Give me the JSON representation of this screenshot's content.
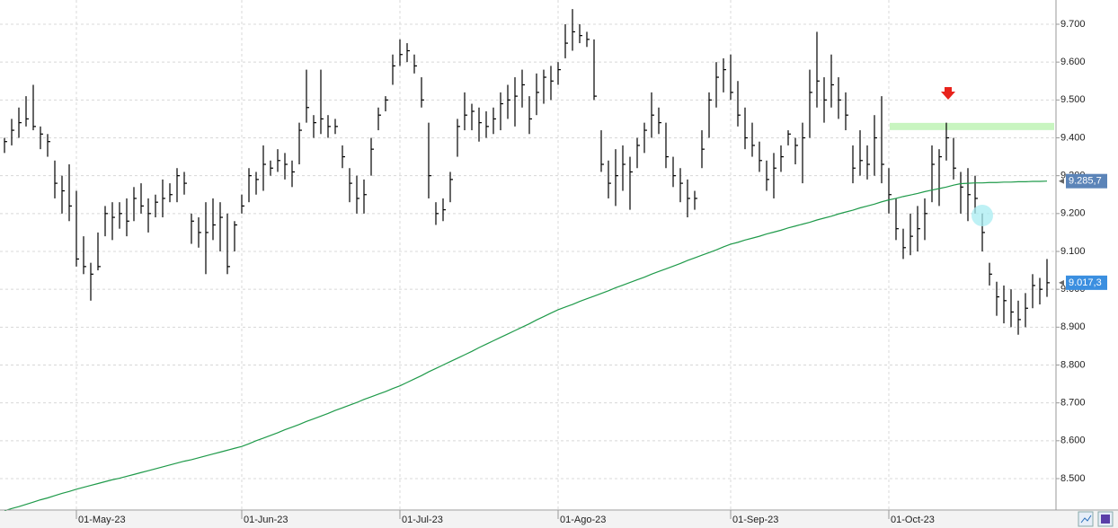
{
  "chart_data": {
    "type": "ohlc",
    "color": "#000000",
    "grid": true,
    "ylim": [
      8417,
      9764
    ],
    "yticks": [
      {
        "value": 8500,
        "label": "8.500"
      },
      {
        "value": 8600,
        "label": "8.600"
      },
      {
        "value": 8700,
        "label": "8.700"
      },
      {
        "value": 8800,
        "label": "8.800"
      },
      {
        "value": 8900,
        "label": "8.900"
      },
      {
        "value": 9000,
        "label": "9.000"
      },
      {
        "value": 9100,
        "label": "9.100"
      },
      {
        "value": 9200,
        "label": "9.200"
      },
      {
        "value": 9300,
        "label": "9.300"
      },
      {
        "value": 9400,
        "label": "9.400"
      },
      {
        "value": 9500,
        "label": "9.500"
      },
      {
        "value": 9600,
        "label": "9.600"
      },
      {
        "value": 9700,
        "label": "9.700"
      }
    ],
    "categories": [
      null,
      null,
      null,
      null,
      null,
      null,
      null,
      null,
      null,
      null,
      "01-May-23",
      null,
      null,
      null,
      null,
      null,
      null,
      null,
      null,
      null,
      null,
      null,
      null,
      null,
      null,
      null,
      null,
      null,
      null,
      null,
      null,
      null,
      null,
      "01-Jun-23",
      null,
      null,
      null,
      null,
      null,
      null,
      null,
      null,
      null,
      null,
      null,
      null,
      null,
      null,
      null,
      null,
      null,
      null,
      null,
      null,
      null,
      "01-Jul-23",
      null,
      null,
      null,
      null,
      null,
      null,
      null,
      null,
      null,
      null,
      null,
      null,
      null,
      null,
      null,
      null,
      null,
      null,
      null,
      null,
      null,
      "01-Ago-23",
      null,
      null,
      null,
      null,
      null,
      null,
      null,
      null,
      null,
      null,
      null,
      null,
      null,
      null,
      null,
      null,
      null,
      null,
      null,
      null,
      null,
      null,
      null,
      "01-Sep-23",
      null,
      null,
      null,
      null,
      null,
      null,
      null,
      null,
      null,
      null,
      null,
      null,
      null,
      null,
      null,
      null,
      null,
      null,
      null,
      null,
      null,
      "01-Oct-23",
      null,
      null,
      null,
      null,
      null,
      null,
      null,
      null,
      null,
      null,
      null,
      null,
      null,
      null,
      null,
      null,
      null,
      null,
      null,
      null,
      null,
      null
    ],
    "high": [
      9400,
      9450,
      9480,
      9510,
      9540,
      9430,
      9410,
      9340,
      9300,
      9330,
      9260,
      9140,
      9070,
      9150,
      9220,
      9230,
      9230,
      9240,
      9270,
      9280,
      9240,
      9250,
      9290,
      9280,
      9320,
      9310,
      9200,
      9190,
      9230,
      9240,
      9230,
      9200,
      9180,
      9250,
      9320,
      9310,
      9380,
      9340,
      9370,
      9360,
      9340,
      9440,
      9580,
      9460,
      9580,
      9460,
      9450,
      9380,
      9320,
      9300,
      9290,
      9400,
      9480,
      9510,
      9620,
      9660,
      9650,
      9620,
      9560,
      9440,
      9230,
      9240,
      9310,
      9450,
      9520,
      9490,
      9480,
      9470,
      9480,
      9520,
      9540,
      9560,
      9580,
      9510,
      9570,
      9580,
      9590,
      9600,
      9700,
      9740,
      9700,
      9680,
      9660,
      9420,
      9340,
      9370,
      9380,
      9350,
      9400,
      9440,
      9520,
      9480,
      9440,
      9350,
      9320,
      9290,
      9260,
      9420,
      9520,
      9600,
      9610,
      9620,
      9550,
      9480,
      9440,
      9390,
      9340,
      9360,
      9380,
      9420,
      9400,
      9440,
      9580,
      9680,
      9560,
      9620,
      9560,
      9520,
      9380,
      9420,
      9380,
      9460,
      9510,
      9320,
      9240,
      9160,
      9200,
      9220,
      9240,
      9380,
      9370,
      9440,
      9400,
      9310,
      9320,
      9300,
      9200,
      9070,
      9020,
      9010,
      9000,
      8970,
      8990,
      9040,
      9030,
      9080
    ],
    "low": [
      9360,
      9380,
      9400,
      9430,
      9420,
      9370,
      9350,
      9240,
      9200,
      9180,
      9060,
      9040,
      8970,
      9050,
      9140,
      9130,
      9160,
      9140,
      9180,
      9200,
      9150,
      9190,
      9190,
      9230,
      9230,
      9250,
      9120,
      9110,
      9040,
      9130,
      9100,
      9040,
      9100,
      9200,
      9230,
      9250,
      9260,
      9300,
      9310,
      9290,
      9270,
      9330,
      9440,
      9400,
      9410,
      9400,
      9410,
      9320,
      9230,
      9200,
      9200,
      9300,
      9420,
      9470,
      9540,
      9590,
      9600,
      9570,
      9480,
      9240,
      9170,
      9180,
      9230,
      9350,
      9420,
      9420,
      9390,
      9400,
      9410,
      9420,
      9450,
      9430,
      9480,
      9410,
      9460,
      9490,
      9500,
      9540,
      9610,
      9630,
      9650,
      9640,
      9500,
      9310,
      9240,
      9220,
      9260,
      9210,
      9320,
      9360,
      9400,
      9410,
      9320,
      9270,
      9230,
      9190,
      9210,
      9320,
      9400,
      9480,
      9520,
      9500,
      9430,
      9370,
      9350,
      9310,
      9260,
      9240,
      9310,
      9380,
      9330,
      9280,
      9400,
      9480,
      9440,
      9480,
      9450,
      9420,
      9280,
      9300,
      9290,
      9300,
      9280,
      9200,
      9130,
      9080,
      9090,
      9100,
      9130,
      9230,
      9220,
      9340,
      9290,
      9200,
      9180,
      9200,
      9100,
      9010,
      8930,
      8910,
      8900,
      8880,
      8900,
      8950,
      8960,
      8980
    ],
    "close": [
      9390,
      9420,
      9440,
      9450,
      9430,
      9410,
      9390,
      9280,
      9260,
      9220,
      9080,
      9060,
      9040,
      9060,
      9200,
      9190,
      9200,
      9180,
      9240,
      9220,
      9200,
      9230,
      9240,
      9250,
      9300,
      9280,
      9180,
      9150,
      9150,
      9170,
      9190,
      9060,
      9170,
      9220,
      9300,
      9290,
      9330,
      9320,
      9340,
      9330,
      9310,
      9420,
      9480,
      9440,
      9450,
      9430,
      9430,
      9350,
      9280,
      9240,
      9250,
      9370,
      9460,
      9500,
      9590,
      9620,
      9630,
      9590,
      9500,
      9300,
      9200,
      9210,
      9290,
      9430,
      9460,
      9470,
      9440,
      9430,
      9450,
      9490,
      9500,
      9510,
      9540,
      9450,
      9520,
      9560,
      9550,
      9580,
      9650,
      9680,
      9670,
      9660,
      9510,
      9330,
      9280,
      9300,
      9330,
      9310,
      9380,
      9420,
      9460,
      9440,
      9350,
      9300,
      9280,
      9240,
      9240,
      9370,
      9500,
      9560,
      9580,
      9520,
      9460,
      9400,
      9380,
      9340,
      9290,
      9320,
      9350,
      9410,
      9380,
      9400,
      9520,
      9550,
      9500,
      9540,
      9500,
      9460,
      9320,
      9340,
      9330,
      9400,
      9330,
      9250,
      9160,
      9110,
      9140,
      9160,
      9200,
      9330,
      9350,
      9400,
      9320,
      9270,
      9250,
      9240,
      9150,
      9040,
      8980,
      8970,
      8940,
      8920,
      8950,
      9010,
      9000,
      9017.3
    ],
    "overlay": {
      "type": "line",
      "color": "#1f9a4a",
      "values": [
        8415,
        8421,
        8426,
        8432,
        8438,
        8444,
        8449,
        8455,
        8461,
        8466,
        8472,
        8477,
        8482,
        8487,
        8492,
        8497,
        8501,
        8506,
        8511,
        8516,
        8521,
        8526,
        8531,
        8536,
        8541,
        8546,
        8550,
        8555,
        8560,
        8565,
        8570,
        8575,
        8580,
        8585,
        8592,
        8600,
        8607,
        8614,
        8621,
        8629,
        8636,
        8643,
        8651,
        8658,
        8665,
        8672,
        8680,
        8687,
        8694,
        8701,
        8709,
        8716,
        8723,
        8730,
        8738,
        8745,
        8754,
        8763,
        8772,
        8782,
        8791,
        8800,
        8809,
        8818,
        8827,
        8836,
        8846,
        8855,
        8864,
        8873,
        8882,
        8891,
        8900,
        8909,
        8919,
        8928,
        8937,
        8946,
        8953,
        8960,
        8968,
        8975,
        8982,
        8989,
        8996,
        9004,
        9011,
        9018,
        9025,
        9032,
        9040,
        9047,
        9054,
        9061,
        9068,
        9076,
        9083,
        9090,
        9097,
        9104,
        9112,
        9119,
        9124,
        9130,
        9135,
        9140,
        9146,
        9151,
        9156,
        9162,
        9167,
        9172,
        9177,
        9183,
        9188,
        9193,
        9199,
        9204,
        9209,
        9215,
        9220,
        9225,
        9231,
        9236,
        9240,
        9245,
        9249,
        9253,
        9258,
        9262,
        9266,
        9270,
        9275,
        9279,
        9280,
        9281,
        9281,
        9282,
        9282,
        9283,
        9283,
        9284,
        9284,
        9285,
        9285,
        9285.7
      ]
    },
    "highlight_level": 9430,
    "highlight_color": "#c8f5c0",
    "price_labels": [
      {
        "value": 9285.7,
        "label": "9.285,7",
        "color": "#5b84b8"
      },
      {
        "value": 9017.3,
        "label": "9.017,3",
        "color": "#3b8fe0"
      }
    ]
  }
}
